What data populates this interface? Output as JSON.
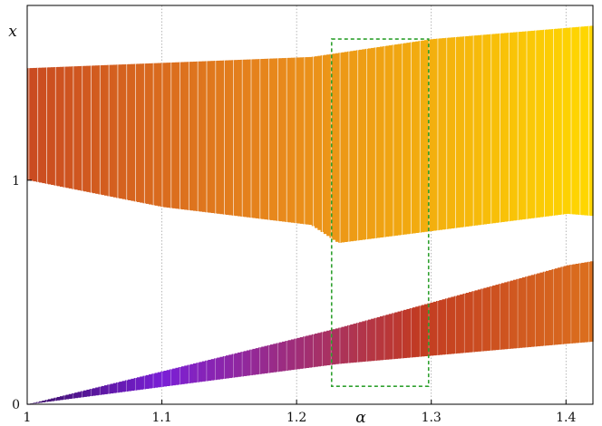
{
  "chart_data": {
    "type": "scatter",
    "xlabel": "α",
    "ylabel": "x",
    "xlim": [
      1.0,
      1.42
    ],
    "ylim": [
      0.0,
      1.78
    ],
    "x_ticks": [
      {
        "value": 1.0,
        "label": "1"
      },
      {
        "value": 1.1,
        "label": "1.1"
      },
      {
        "value": 1.2,
        "label": "1.2"
      },
      {
        "value": 1.3,
        "label": "1.3"
      },
      {
        "value": 1.4,
        "label": "1.4"
      }
    ],
    "y_ticks": [
      {
        "value": 0,
        "label": "0"
      },
      {
        "value": 1,
        "label": "1"
      }
    ],
    "grid": "x-dotted",
    "colormap": [
      "#000000",
      "#7a1fd6",
      "#c23b22",
      "#e8891c",
      "#ffd800"
    ],
    "upper_band_start": [
      [
        1.0,
        1.5
      ],
      [
        1.21,
        1.55
      ],
      [
        1.3,
        1.63
      ],
      [
        1.4,
        1.68
      ],
      [
        1.42,
        1.69
      ]
    ],
    "upper_band_end": [
      [
        1.0,
        1.0
      ],
      [
        1.1,
        0.88
      ],
      [
        1.21,
        0.8
      ],
      [
        1.23,
        0.72
      ],
      [
        1.4,
        0.85
      ],
      [
        1.42,
        0.84
      ]
    ],
    "lower_band_start": [
      [
        1.0,
        0.0
      ],
      [
        1.23,
        0.34
      ],
      [
        1.4,
        0.62
      ],
      [
        1.42,
        0.64
      ]
    ],
    "lower_band_end": [
      [
        1.0,
        0.0
      ],
      [
        1.23,
        0.18
      ],
      [
        1.4,
        0.27
      ],
      [
        1.42,
        0.28
      ]
    ],
    "highlight_box": {
      "x0": 1.226,
      "x1": 1.298,
      "y0": 0.08,
      "y1": 1.63,
      "color": "#2fa02f"
    }
  }
}
